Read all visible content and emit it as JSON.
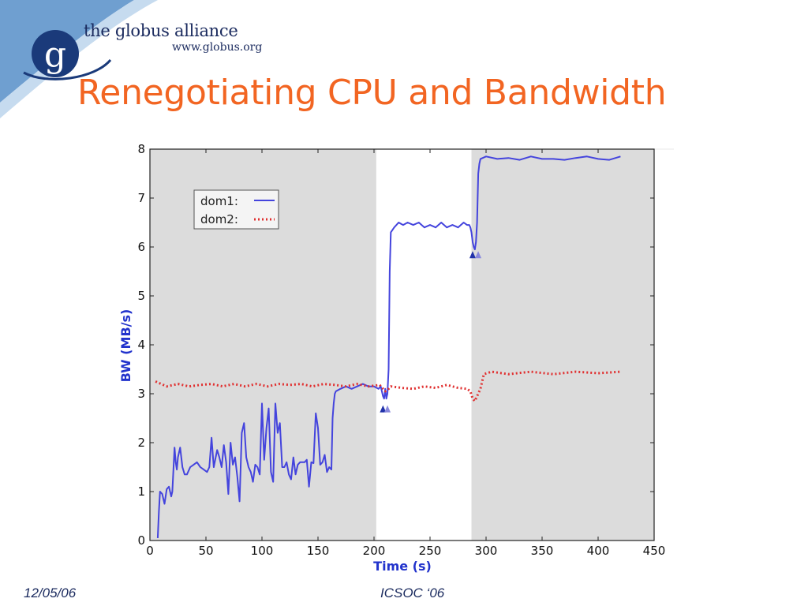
{
  "header": {
    "brand_letter": "g",
    "brand_name": "the globus alliance",
    "brand_url": "www.globus.org"
  },
  "slide": {
    "title": "Renegotiating CPU and Bandwidth"
  },
  "footer": {
    "date": "12/05/06",
    "conference": "ICSOC ‘06"
  },
  "colors": {
    "title": "#f26522",
    "brand": "#1a2a5e",
    "dom1": "#4444dd",
    "dom2": "#e03030",
    "shade": "#dcdcdc",
    "marker_dark": "#2233aa",
    "marker_light": "#8888dd"
  },
  "chart_data": {
    "type": "line",
    "xlabel": "Time (s)",
    "ylabel": "BW (MB/s)",
    "xlim": [
      0,
      450
    ],
    "ylim": [
      0,
      8
    ],
    "xticks": [
      0,
      50,
      100,
      150,
      200,
      250,
      300,
      350,
      400,
      450
    ],
    "yticks": [
      0,
      1,
      2,
      3,
      4,
      5,
      6,
      7,
      8
    ],
    "grid": false,
    "legend_position": "top-left",
    "shaded_regions": [
      [
        0,
        202
      ],
      [
        287,
        450
      ]
    ],
    "markers": [
      {
        "x": 208,
        "y": 2.7
      },
      {
        "x": 212,
        "y": 2.7
      },
      {
        "x": 288,
        "y": 5.85
      },
      {
        "x": 293,
        "y": 5.85
      }
    ],
    "series": [
      {
        "name": "dom1:",
        "style": "solid",
        "x": [
          7,
          8,
          9,
          11,
          13,
          15,
          17,
          19,
          20,
          21,
          22,
          23,
          24,
          25,
          27,
          29,
          31,
          33,
          36,
          39,
          42,
          45,
          48,
          51,
          53,
          55,
          57,
          60,
          62,
          64,
          66,
          68,
          70,
          72,
          74,
          76,
          78,
          80,
          82,
          84,
          86,
          88,
          90,
          92,
          94,
          96,
          98,
          100,
          102,
          104,
          106,
          108,
          110,
          112,
          114,
          116,
          118,
          120,
          122,
          124,
          126,
          128,
          130,
          132,
          134,
          136,
          138,
          140,
          142,
          144,
          146,
          148,
          150,
          152,
          154,
          156,
          158,
          160,
          162,
          163,
          164,
          165,
          166,
          170,
          175,
          180,
          185,
          190,
          195,
          200,
          204,
          206,
          208,
          209,
          210,
          211,
          212,
          213,
          214,
          215,
          218,
          222,
          226,
          230,
          235,
          240,
          245,
          250,
          255,
          260,
          265,
          270,
          275,
          280,
          283,
          285,
          286,
          287,
          288,
          289,
          290,
          291,
          292,
          293,
          294,
          295,
          300,
          310,
          320,
          330,
          340,
          350,
          360,
          370,
          380,
          390,
          400,
          410,
          420
        ],
        "values": [
          0.05,
          0.6,
          1.0,
          0.95,
          0.75,
          1.05,
          1.1,
          0.9,
          1.0,
          1.45,
          1.9,
          1.6,
          1.45,
          1.7,
          1.9,
          1.5,
          1.35,
          1.35,
          1.5,
          1.55,
          1.6,
          1.5,
          1.45,
          1.4,
          1.5,
          2.1,
          1.5,
          1.85,
          1.7,
          1.5,
          1.95,
          1.6,
          0.95,
          2.0,
          1.55,
          1.7,
          1.3,
          0.8,
          2.2,
          2.4,
          1.7,
          1.5,
          1.4,
          1.2,
          1.55,
          1.5,
          1.35,
          2.8,
          1.65,
          2.3,
          2.7,
          1.4,
          1.2,
          2.8,
          2.2,
          2.4,
          1.5,
          1.5,
          1.6,
          1.35,
          1.25,
          1.7,
          1.35,
          1.55,
          1.6,
          1.6,
          1.6,
          1.65,
          1.1,
          1.6,
          1.58,
          2.6,
          2.3,
          1.55,
          1.6,
          1.75,
          1.4,
          1.5,
          1.45,
          2.5,
          2.8,
          3.0,
          3.05,
          3.1,
          3.15,
          3.1,
          3.15,
          3.2,
          3.15,
          3.15,
          3.1,
          3.15,
          2.95,
          2.9,
          3.1,
          2.9,
          3.0,
          3.5,
          5.5,
          6.3,
          6.4,
          6.5,
          6.45,
          6.5,
          6.45,
          6.5,
          6.4,
          6.45,
          6.4,
          6.5,
          6.4,
          6.45,
          6.4,
          6.5,
          6.45,
          6.45,
          6.4,
          6.3,
          6.1,
          6.0,
          5.95,
          6.1,
          6.5,
          7.5,
          7.7,
          7.8,
          7.85,
          7.8,
          7.82,
          7.78,
          7.85,
          7.8,
          7.8,
          7.78,
          7.82,
          7.85,
          7.8,
          7.78,
          7.85
        ]
      },
      {
        "name": "dom2:",
        "style": "dotted",
        "x": [
          5,
          15,
          25,
          35,
          45,
          55,
          65,
          75,
          85,
          95,
          105,
          115,
          125,
          135,
          145,
          155,
          165,
          175,
          185,
          195,
          205,
          210,
          213,
          215,
          225,
          235,
          245,
          255,
          265,
          275,
          283,
          286,
          288,
          290,
          292,
          295,
          298,
          305,
          320,
          340,
          360,
          380,
          400,
          420
        ],
        "values": [
          3.25,
          3.15,
          3.2,
          3.15,
          3.18,
          3.2,
          3.15,
          3.2,
          3.15,
          3.2,
          3.15,
          3.2,
          3.18,
          3.2,
          3.15,
          3.2,
          3.18,
          3.15,
          3.2,
          3.15,
          3.18,
          3.05,
          3.1,
          3.15,
          3.12,
          3.1,
          3.15,
          3.12,
          3.18,
          3.12,
          3.1,
          3.05,
          2.9,
          2.85,
          2.95,
          3.1,
          3.4,
          3.45,
          3.4,
          3.45,
          3.4,
          3.45,
          3.42,
          3.45
        ]
      }
    ]
  }
}
